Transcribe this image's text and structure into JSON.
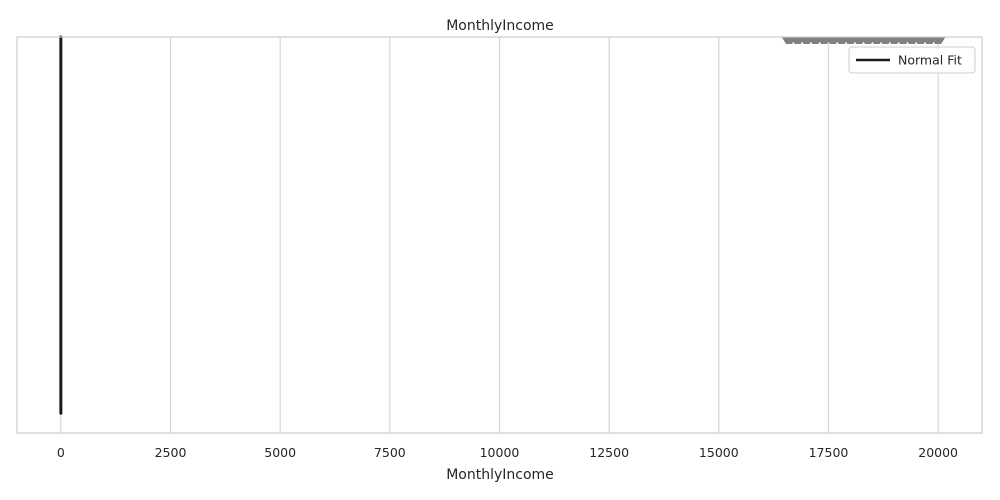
{
  "chart_data": {
    "type": "line",
    "title": "MonthlyIncome",
    "xlabel": "MonthlyIncome",
    "ylabel": "",
    "xlim": [
      -1000,
      21000
    ],
    "xticks": [
      0,
      2500,
      5000,
      7500,
      10000,
      12500,
      15000,
      17500,
      20000
    ],
    "xtick_labels": [
      "0",
      "2500",
      "5000",
      "7500",
      "10000",
      "12500",
      "15000",
      "17500",
      "20000"
    ],
    "grid": true,
    "legend": {
      "placement": "top-right",
      "entries": [
        "Normal Fit"
      ]
    },
    "series": [
      {
        "name": "Normal Fit",
        "color": "#1a1a1a",
        "x": [
          0,
          0
        ],
        "y": [
          0.05,
          1.0
        ]
      }
    ],
    "violin_marks": {
      "color": "#808080",
      "x": [
        16600,
        16800,
        17000,
        17200,
        17400,
        17600,
        17800,
        18000,
        18200,
        18400,
        18600,
        18800,
        19000,
        19200,
        19400,
        19600,
        19800,
        20000
      ]
    },
    "colors": {
      "grid": "#d5d5d5",
      "axis": "#cccccc",
      "line": "#1a1a1a",
      "marks": "#808080"
    }
  }
}
